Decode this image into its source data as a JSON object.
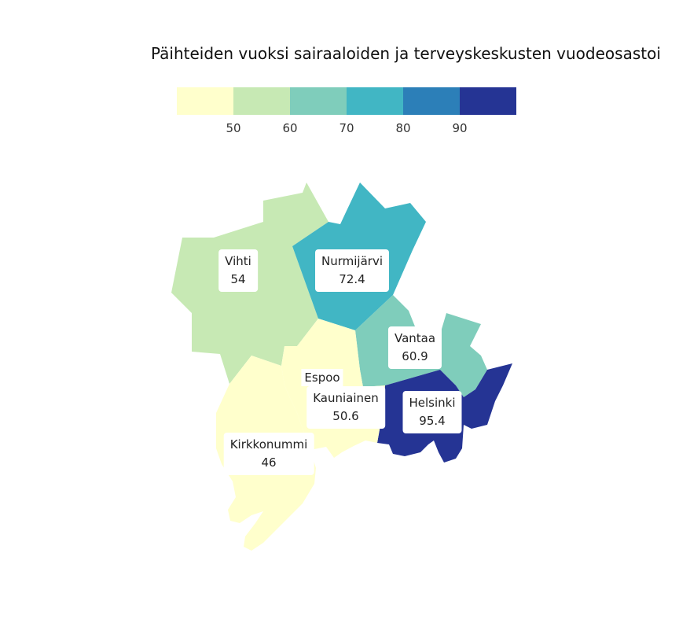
{
  "title": "Päihteiden vuoksi sairaaloiden ja terveyskeskusten vuodeosastoi",
  "legend": {
    "colors": [
      "#ffffcc",
      "#c7e9b4",
      "#7fcdbb",
      "#41b6c4",
      "#2c7fb8",
      "#253494"
    ],
    "ticks": [
      "50",
      "60",
      "70",
      "80",
      "90"
    ]
  },
  "chart_data": {
    "type": "choropleth",
    "regions": [
      {
        "name": "Vihti",
        "value": "54"
      },
      {
        "name": "Nurmijärvi",
        "value": "72.4"
      },
      {
        "name": "Vantaa",
        "value": "60.9"
      },
      {
        "name": "Helsinki",
        "value": "95.4"
      },
      {
        "name": "Kauniainen",
        "value": "50.6"
      },
      {
        "name": "Kirkkonummi",
        "value": "46"
      },
      {
        "name": "Espoo",
        "value": ""
      }
    ]
  }
}
